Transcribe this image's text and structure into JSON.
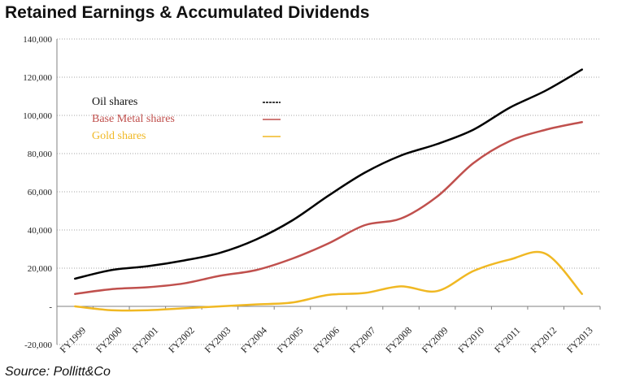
{
  "title": "Retained Earnings & Accumulated Dividends",
  "source": "Source: Pollitt&Co",
  "chart_data": {
    "type": "line",
    "title": "Retained Earnings & Accumulated Dividends",
    "xlabel": "",
    "ylabel": "",
    "categories": [
      "FY1999",
      "FY2000",
      "FY2001",
      "FY2002",
      "FY2003",
      "FY2004",
      "FY2005",
      "FY2006",
      "FY2007",
      "FY2008",
      "FY2009",
      "FY2010",
      "FY2011",
      "FY2012",
      "FY2013"
    ],
    "ylim": [
      -20000,
      140000
    ],
    "yticks": [
      -20000,
      0,
      20000,
      40000,
      60000,
      80000,
      100000,
      120000,
      140000
    ],
    "ytick_labels": [
      "-20,000",
      "-",
      "20,000",
      "40,000",
      "60,000",
      "80,000",
      "100,000",
      "120,000",
      "140,000"
    ],
    "grid": "horizontal dotted",
    "legend": "top-left inside plot",
    "series": [
      {
        "name": "Oil shares",
        "color": "#000000",
        "values": [
          14500,
          19000,
          21000,
          24000,
          28000,
          35000,
          45000,
          58000,
          70000,
          79000,
          85000,
          92500,
          104000,
          113000,
          124000
        ]
      },
      {
        "name": "Base Metal shares",
        "color": "#c0504d",
        "values": [
          6500,
          9000,
          10000,
          12000,
          16000,
          19000,
          25000,
          33000,
          42500,
          46000,
          57500,
          75000,
          86500,
          92500,
          96500
        ]
      },
      {
        "name": "Gold shares",
        "color": "#f0b823",
        "values": [
          0,
          -2000,
          -2000,
          -1000,
          0,
          1000,
          2000,
          6000,
          7000,
          10500,
          8000,
          18500,
          24500,
          27500,
          6500
        ]
      }
    ]
  }
}
